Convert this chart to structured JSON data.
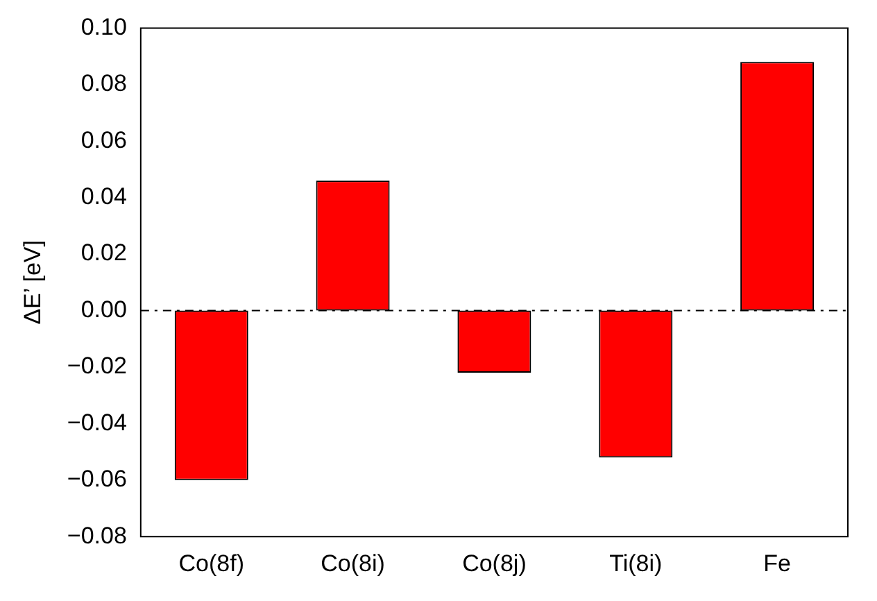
{
  "chart_data": {
    "type": "bar",
    "ylabel": "ΔE’ [eV]",
    "categories": [
      "Co(8f)",
      "Co(8i)",
      "Co(8j)",
      "Ti(8i)",
      "Fe"
    ],
    "values": [
      -0.06,
      0.046,
      -0.022,
      -0.052,
      0.088
    ],
    "color": "#ff0000",
    "ylim": [
      -0.08,
      0.1
    ],
    "yticks": [
      {
        "value": -0.08,
        "label": "−0.08"
      },
      {
        "value": -0.06,
        "label": "−0.06"
      },
      {
        "value": -0.04,
        "label": "−0.04"
      },
      {
        "value": -0.02,
        "label": "−0.02"
      },
      {
        "value": 0,
        "label": "0.00"
      },
      {
        "value": 0.02,
        "label": "0.02"
      },
      {
        "value": 0.04,
        "label": "0.04"
      },
      {
        "value": 0.06,
        "label": "0.06"
      },
      {
        "value": 0.08,
        "label": "0.08"
      },
      {
        "value": 0.1,
        "label": "0.10"
      }
    ],
    "grid": false,
    "legend": false,
    "ref_lines": [
      {
        "axis": "y",
        "value": 0,
        "color": "#000000",
        "line_style": "dashed"
      }
    ]
  }
}
